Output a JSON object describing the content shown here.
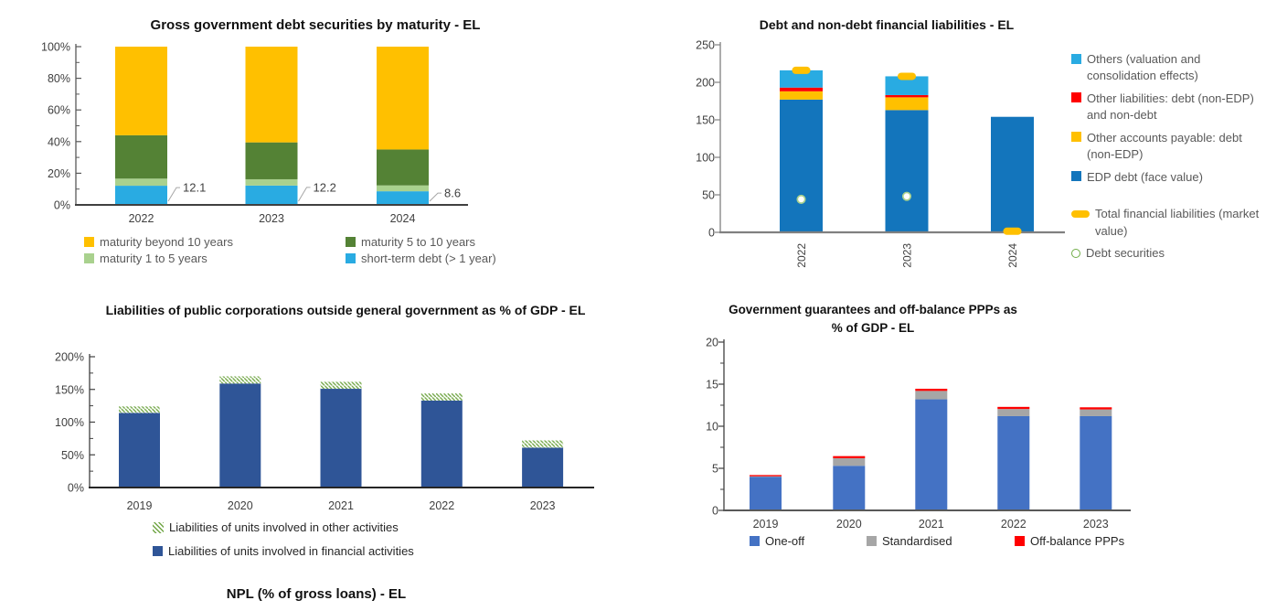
{
  "bottom_title": "NPL (% of gross loans) - EL",
  "chart_data": [
    {
      "type": "bar",
      "stacked": true,
      "title": "Gross government debt securities by maturity - EL",
      "categories": [
        "2022",
        "2023",
        "2024"
      ],
      "series": [
        {
          "name": "short-term debt (> 1 year)",
          "color": "#29ABE2",
          "values": [
            12.1,
            12.2,
            8.6
          ]
        },
        {
          "name": "maturity 1 to 5 years",
          "color": "#A9D18E",
          "values": [
            4.5,
            4.0,
            3.7
          ]
        },
        {
          "name": "maturity 5 to 10 years",
          "color": "#548235",
          "values": [
            27.4,
            23.3,
            22.7
          ]
        },
        {
          "name": "maturity beyond 10 years",
          "color": "#FFC000",
          "values": [
            56.0,
            60.5,
            65.0
          ]
        }
      ],
      "ylim": [
        0,
        100
      ],
      "ytick_step": 20,
      "ytick_suffix": "%",
      "grid": false,
      "annotations": [
        {
          "category": "2022",
          "text": "12.1"
        },
        {
          "category": "2023",
          "text": "12.2"
        },
        {
          "category": "2024",
          "text": "8.6"
        }
      ],
      "legend": [
        {
          "label": "maturity beyond 10 years",
          "swatch": "square",
          "color": "#FFC000"
        },
        {
          "label": "maturity 5 to 10 years",
          "swatch": "square",
          "color": "#548235"
        },
        {
          "label": "maturity 1 to 5 years",
          "swatch": "square",
          "color": "#A9D18E"
        },
        {
          "label": "short-term debt (> 1 year)",
          "swatch": "square",
          "color": "#29ABE2"
        }
      ]
    },
    {
      "type": "bar",
      "stacked": true,
      "title": "Debt and non-debt financial liabilities - EL",
      "categories": [
        "2022",
        "2023",
        "2024"
      ],
      "series": [
        {
          "name": "EDP debt (face value)",
          "color": "#1375BC",
          "values": [
            177,
            163,
            154
          ]
        },
        {
          "name": "Other accounts payable: debt (non-EDP)",
          "color": "#FFC000",
          "values": [
            11,
            17,
            0
          ]
        },
        {
          "name": "Other liabilities: debt (non-EDP) and non-debt",
          "color": "#FF0000",
          "values": [
            5,
            3,
            0
          ]
        },
        {
          "name": "Others (valuation and consolidation effects)",
          "color": "#29ABE2",
          "values": [
            23,
            25,
            0
          ]
        }
      ],
      "markers": [
        {
          "key": "total-financial-liabilities",
          "type": "dash",
          "color": "#FFC000",
          "label": "Total financial liabilities (market value)",
          "values": [
            216,
            208,
            1.5
          ]
        },
        {
          "key": "debt-securities",
          "type": "circle",
          "color": "#A9D18E",
          "label": "Debt securities",
          "values": [
            44,
            48,
            null
          ]
        }
      ],
      "ylim": [
        0,
        250
      ],
      "ytick_step": 50,
      "ytick_suffix": "",
      "grid": false,
      "x_labels_rotated": true,
      "legend": [
        {
          "label": "Others (valuation and consolidation effects)",
          "swatch": "square",
          "color": "#29ABE2"
        },
        {
          "label": "Other liabilities: debt (non-EDP) and non-debt",
          "swatch": "square",
          "color": "#FF0000"
        },
        {
          "label": "Other accounts payable: debt (non-EDP)",
          "swatch": "square",
          "color": "#FFC000"
        },
        {
          "label": "EDP debt (face value)",
          "swatch": "square",
          "color": "#1375BC"
        },
        {
          "label": "Total financial liabilities (market value)",
          "swatch": "dash",
          "color": "#FFC000",
          "gap_before": true
        },
        {
          "label": "Debt securities",
          "swatch": "circle",
          "color": "#70AD47"
        }
      ]
    },
    {
      "type": "bar",
      "stacked": true,
      "title": "Liabilities of public corporations outside general government as % of GDP - EL",
      "categories": [
        "2019",
        "2020",
        "2021",
        "2022",
        "2023"
      ],
      "series": [
        {
          "name": "Liabilities of units involved in financial activities",
          "color": "#2F5597",
          "values": [
            114,
            159,
            151,
            133,
            61
          ]
        },
        {
          "name": "Liabilities of units involved in other activities",
          "color": "hatch",
          "values": [
            10,
            11,
            11,
            11,
            11
          ]
        }
      ],
      "ylim": [
        0,
        200
      ],
      "ytick_step": 50,
      "ytick_suffix": "%",
      "grid": false,
      "legend": [
        {
          "label": "Liabilities of units involved in other activities",
          "swatch": "hatch",
          "color": "#71A646"
        },
        {
          "label": "Liabilities of units involved in financial activities",
          "swatch": "square",
          "color": "#2F5597"
        }
      ]
    },
    {
      "type": "bar",
      "stacked": true,
      "title": "Government guarantees and off-balance PPPs as % of GDP - EL",
      "categories": [
        "2019",
        "2020",
        "2021",
        "2022",
        "2023"
      ],
      "series": [
        {
          "name": "One-off",
          "color": "#4472C4",
          "values": [
            4.0,
            5.3,
            13.2,
            11.2,
            11.2
          ]
        },
        {
          "name": "Standardised",
          "color": "#A6A6A6",
          "values": [
            0.05,
            0.9,
            1.0,
            0.85,
            0.8
          ]
        },
        {
          "name": "Off-balance PPPs",
          "color": "#FF0000",
          "values": [
            0.15,
            0.25,
            0.25,
            0.25,
            0.25
          ]
        }
      ],
      "ylim": [
        0,
        20
      ],
      "ytick_step": 5,
      "ytick_suffix": "",
      "grid": false,
      "legend": [
        {
          "label": "One-off",
          "swatch": "square",
          "color": "#4472C4"
        },
        {
          "label": "Standardised",
          "swatch": "square",
          "color": "#A6A6A6"
        },
        {
          "label": "Off-balance PPPs",
          "swatch": "square",
          "color": "#FF0000"
        }
      ]
    }
  ]
}
